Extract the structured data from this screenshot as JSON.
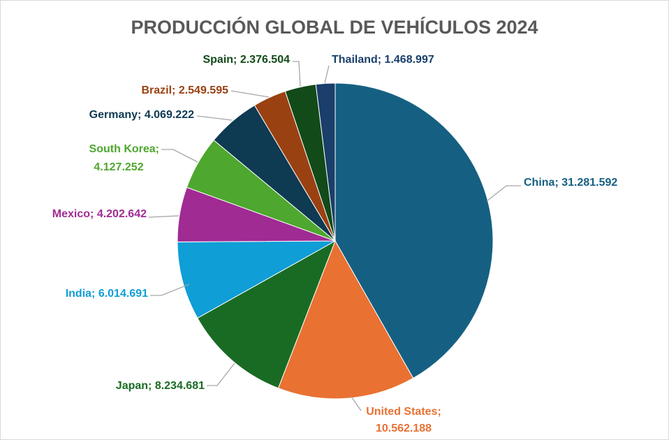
{
  "chart_data": {
    "type": "pie",
    "title": "PRODUCCIÓN GLOBAL DE VEHÍCULOS 2024",
    "start_angle_deg": 0,
    "direction": "clockwise",
    "legend": "none",
    "data_labels": "category; value (outside with leader lines)",
    "slices": [
      {
        "name": "China",
        "value": 31281592,
        "label": "China; 31.281.592",
        "color": "#156082"
      },
      {
        "name": "United States",
        "value": 10562188,
        "label_lines": [
          "United States;",
          "10.562.188"
        ],
        "color": "#E97132"
      },
      {
        "name": "Japan",
        "value": 8234681,
        "label": "Japan; 8.234.681",
        "color": "#196B24"
      },
      {
        "name": "India",
        "value": 6014691,
        "label": "India; 6.014.691",
        "color": "#0F9ED5"
      },
      {
        "name": "Mexico",
        "value": 4202642,
        "label": "Mexico; 4.202.642",
        "color": "#A02B93"
      },
      {
        "name": "South Korea",
        "value": 4127252,
        "label_lines": [
          "South Korea;",
          "4.127.252"
        ],
        "color": "#4EA72E"
      },
      {
        "name": "Germany",
        "value": 4069222,
        "label": "Germany; 4.069.222",
        "color": "#0E3A52"
      },
      {
        "name": "Brazil",
        "value": 2549595,
        "label": "Brazil; 2.549.595",
        "color": "#9A4112"
      },
      {
        "name": "Spain",
        "value": 2376504,
        "label": "Spain; 2.376.504",
        "color": "#124A19"
      },
      {
        "name": "Thailand",
        "value": 1468997,
        "label": "Thailand; 1.468.997",
        "color": "#193F6A"
      }
    ]
  }
}
